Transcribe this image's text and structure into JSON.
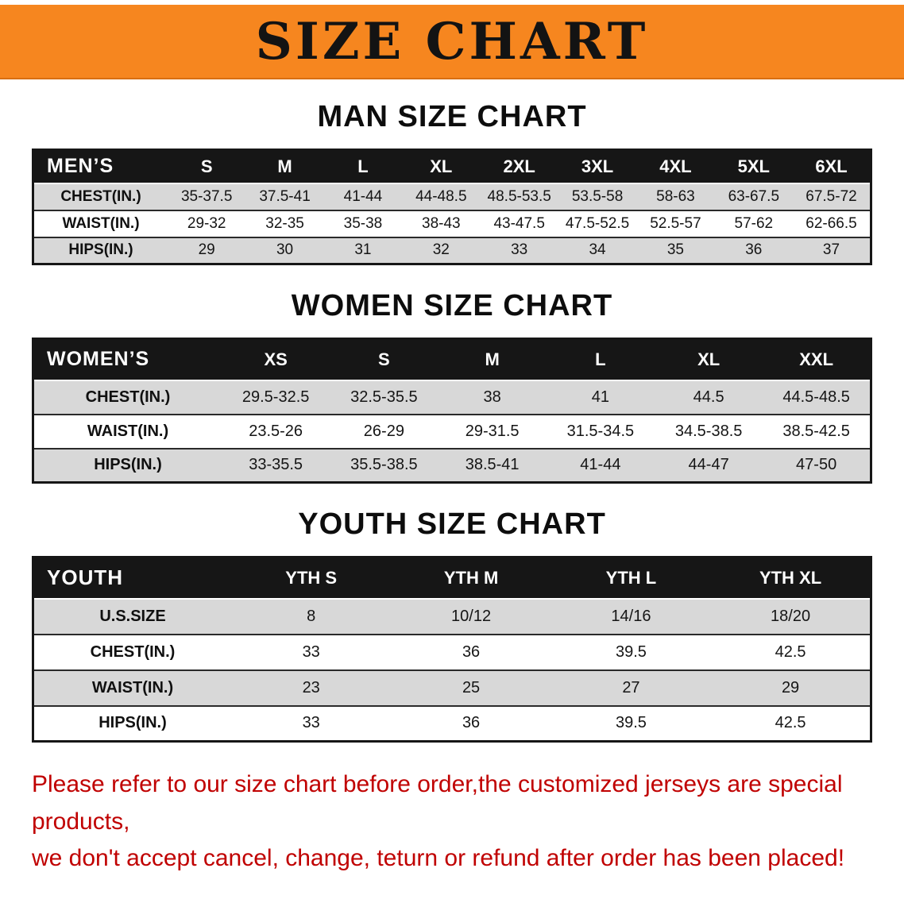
{
  "banner": {
    "title": "SIZE CHART",
    "bg_color": "#F6861F"
  },
  "sections": [
    {
      "heading": "MAN SIZE CHART",
      "table": {
        "header": [
          "MEN’S",
          "S",
          "M",
          "L",
          "XL",
          "2XL",
          "3XL",
          "4XL",
          "5XL",
          "6XL"
        ],
        "rows": [
          {
            "label": "CHEST(IN.)",
            "values": [
              "35-37.5",
              "37.5-41",
              "41-44",
              "44-48.5",
              "48.5-53.5",
              "53.5-58",
              "58-63",
              "63-67.5",
              "67.5-72"
            ]
          },
          {
            "label": "WAIST(IN.)",
            "values": [
              "29-32",
              "32-35",
              "35-38",
              "38-43",
              "43-47.5",
              "47.5-52.5",
              "52.5-57",
              "57-62",
              "62-66.5"
            ]
          },
          {
            "label": "HIPS(IN.)",
            "values": [
              "29",
              "30",
              "31",
              "32",
              "33",
              "34",
              "35",
              "36",
              "37"
            ]
          }
        ]
      }
    },
    {
      "heading": "WOMEN SIZE CHART",
      "table": {
        "header": [
          "WOMEN’S",
          "XS",
          "S",
          "M",
          "L",
          "XL",
          "XXL"
        ],
        "rows": [
          {
            "label": "CHEST(IN.)",
            "values": [
              "29.5-32.5",
              "32.5-35.5",
              "38",
              "41",
              "44.5",
              "44.5-48.5"
            ]
          },
          {
            "label": "WAIST(IN.)",
            "values": [
              "23.5-26",
              "26-29",
              "29-31.5",
              "31.5-34.5",
              "34.5-38.5",
              "38.5-42.5"
            ]
          },
          {
            "label": "HIPS(IN.)",
            "values": [
              "33-35.5",
              "35.5-38.5",
              "38.5-41",
              "41-44",
              "44-47",
              "47-50"
            ]
          }
        ]
      }
    },
    {
      "heading": "YOUTH SIZE CHART",
      "table": {
        "header": [
          "YOUTH",
          "YTH S",
          "YTH M",
          "YTH L",
          "YTH XL"
        ],
        "rows": [
          {
            "label": "U.S.SIZE",
            "values": [
              "8",
              "10/12",
              "14/16",
              "18/20"
            ]
          },
          {
            "label": "CHEST(IN.)",
            "values": [
              "33",
              "36",
              "39.5",
              "42.5"
            ]
          },
          {
            "label": "WAIST(IN.)",
            "values": [
              "23",
              "25",
              "27",
              "29"
            ]
          },
          {
            "label": "HIPS(IN.)",
            "values": [
              "33",
              "36",
              "39.5",
              "42.5"
            ]
          }
        ]
      }
    }
  ],
  "footer": {
    "lines": [
      "Please refer to our size chart before order,the customized jerseys are special products,",
      "we don't accept cancel, change, teturn or refund after order has been placed!"
    ],
    "text_color": "#C00000"
  }
}
